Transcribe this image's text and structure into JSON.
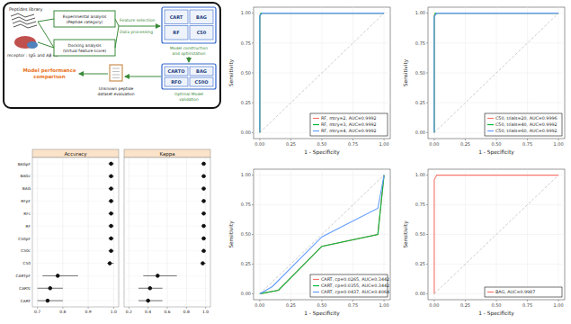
{
  "diagram": {
    "nodes": [
      {
        "label": [
          "Peptides library"
        ]
      },
      {
        "label": [
          "receptor : IgG and Aβ 42"
        ]
      },
      {
        "label": [
          "Experimental analysis",
          "(Peptide category)"
        ]
      },
      {
        "label": [
          "Docking analysis",
          "(Virtual feature score)"
        ]
      },
      {
        "label": [
          "Feature selection"
        ]
      },
      {
        "label": [
          "Data processing"
        ]
      },
      {
        "label": [
          "CART",
          "BAG",
          "RF",
          "C50"
        ]
      },
      {
        "label": [
          "Model construction",
          "and optimization"
        ]
      },
      {
        "label": [
          "CARTO",
          "BAG",
          "RFO",
          "C50O"
        ]
      },
      {
        "label": [
          "Optimal Model",
          "validation"
        ]
      },
      {
        "label": [
          "Unknown peptide",
          "dataset evaluation"
        ]
      },
      {
        "label": [
          "Model performance",
          "comparison"
        ]
      }
    ]
  },
  "chart_data": [
    {
      "type": "dot",
      "title": "Accuracy",
      "orientation": "horizontal",
      "grid": true,
      "categories": [
        "BAGpF",
        "BAGc",
        "BAG",
        "RFpF",
        "RFc",
        "RF",
        "C50pF",
        "C50c",
        "C50",
        "CARTpF",
        "CARTc",
        "CART"
      ],
      "values": [
        0.99,
        0.99,
        0.99,
        0.99,
        0.99,
        0.99,
        0.99,
        0.99,
        0.985,
        0.78,
        0.75,
        0.74
      ],
      "lower": [
        0.98,
        0.98,
        0.98,
        0.98,
        0.98,
        0.98,
        0.98,
        0.98,
        0.975,
        0.72,
        0.7,
        0.7
      ],
      "upper": [
        1,
        1,
        1,
        1,
        1,
        1,
        1,
        1,
        1,
        0.86,
        0.8,
        0.8
      ],
      "xlim": [
        0.68,
        1.02
      ],
      "xticks": [
        0.7,
        0.8,
        0.9,
        {
          "value": 1,
          "label": "1.0"
        }
      ]
    },
    {
      "type": "dot",
      "title": "Kappa",
      "orientation": "horizontal",
      "grid": true,
      "values": [
        0.98,
        0.98,
        0.98,
        0.98,
        0.98,
        0.98,
        0.98,
        0.98,
        0.97,
        0.5,
        0.42,
        0.4
      ],
      "lower": [
        0.96,
        0.96,
        0.96,
        0.96,
        0.96,
        0.96,
        0.96,
        0.96,
        0.95,
        0.35,
        0.3,
        0.3
      ],
      "upper": [
        1,
        1,
        1,
        1,
        1,
        1,
        1,
        1,
        1,
        0.7,
        0.55,
        0.55
      ],
      "xlim": [
        0.15,
        1.05
      ],
      "xticks": [
        0.2,
        0.4,
        0.6,
        0.8,
        {
          "value": 1,
          "label": "1.0"
        }
      ]
    },
    {
      "type": "line",
      "xlabel": "1 - Specificity",
      "ylabel": "Sensitivity",
      "grid": true,
      "legend": "bottom-right",
      "xlim": [
        -0.05,
        1.05
      ],
      "ylim": [
        -0.05,
        1.05
      ],
      "xticks": [
        {
          "value": 0,
          "label": "0.00"
        },
        {
          "value": 0.25,
          "label": "0.25"
        },
        {
          "value": 0.5,
          "label": "0.50"
        },
        {
          "value": 0.75,
          "label": "0.75"
        },
        {
          "value": 1,
          "label": "1.00"
        }
      ],
      "yticks": [
        {
          "value": 0,
          "label": "0.00"
        },
        {
          "value": 0.25,
          "label": "0.25"
        },
        {
          "value": 0.5,
          "label": "0.50"
        },
        {
          "value": 0.75,
          "label": "0.75"
        },
        {
          "value": 1,
          "label": "1.00"
        }
      ],
      "series": [
        {
          "name": "RF, mtry=2, AUC=0.9992",
          "color": "#F8766D",
          "x": [
            0,
            0,
            0.01,
            1
          ],
          "values": [
            0,
            0.98,
            1,
            1
          ]
        },
        {
          "name": "RF, mtry=3, AUC=0.9992",
          "color": "#00BA38",
          "x": [
            0,
            0,
            0.01,
            1
          ],
          "values": [
            0,
            0.97,
            1,
            1
          ]
        },
        {
          "name": "RF, mtry=4, AUC=0.9992",
          "color": "#619CFF",
          "x": [
            0,
            0,
            0.02,
            1
          ],
          "values": [
            0,
            0.98,
            1,
            1
          ]
        }
      ]
    },
    {
      "type": "line",
      "xlabel": "1 - Specificity",
      "ylabel": "Sensitivity",
      "grid": true,
      "legend": "bottom-right",
      "xlim": [
        -0.05,
        1.05
      ],
      "ylim": [
        -0.05,
        1.05
      ],
      "xticks": [
        {
          "value": 0,
          "label": "0.00"
        },
        {
          "value": 0.25,
          "label": "0.25"
        },
        {
          "value": 0.5,
          "label": "0.50"
        },
        {
          "value": 0.75,
          "label": "0.75"
        },
        {
          "value": 1,
          "label": "1.00"
        }
      ],
      "yticks": [
        {
          "value": 0,
          "label": "0.00"
        },
        {
          "value": 0.25,
          "label": "0.25"
        },
        {
          "value": 0.5,
          "label": "0.50"
        },
        {
          "value": 0.75,
          "label": "0.75"
        },
        {
          "value": 1,
          "label": "1.00"
        }
      ],
      "series": [
        {
          "name": "C50, trials=20, AUC=0.9996",
          "color": "#F8766D",
          "x": [
            0,
            0,
            0.01,
            1
          ],
          "values": [
            0,
            0.98,
            1,
            1
          ]
        },
        {
          "name": "C50, trials=40, AUC=0.9992",
          "color": "#00BA38",
          "x": [
            0,
            0,
            0.01,
            1
          ],
          "values": [
            0,
            0.97,
            1,
            1
          ]
        },
        {
          "name": "C50, trials=60, AUC=0.9992",
          "color": "#619CFF",
          "x": [
            0,
            0,
            0.02,
            1
          ],
          "values": [
            0,
            0.97,
            1,
            1
          ]
        }
      ]
    },
    {
      "type": "line",
      "xlabel": "1 - Specificity",
      "ylabel": "Sensitivity",
      "grid": true,
      "legend": "bottom-right",
      "xlim": [
        -0.05,
        1.05
      ],
      "ylim": [
        -0.05,
        1.05
      ],
      "xticks": [
        {
          "value": 0,
          "label": "0.00"
        },
        {
          "value": 0.25,
          "label": "0.25"
        },
        {
          "value": 0.5,
          "label": "0.50"
        },
        {
          "value": 0.75,
          "label": "0.75"
        },
        {
          "value": 1,
          "label": "1.00"
        }
      ],
      "yticks": [
        {
          "value": 0,
          "label": "0.00"
        },
        {
          "value": 0.25,
          "label": "0.25"
        },
        {
          "value": 0.5,
          "label": "0.50"
        },
        {
          "value": 0.75,
          "label": "0.75"
        },
        {
          "value": 1,
          "label": "1.00"
        }
      ],
      "series": [
        {
          "name": "CART, cp=0.0265, AUC=0.3442",
          "color": "#F8766D",
          "x": [
            0,
            0.15,
            0.5,
            0.95,
            1
          ],
          "values": [
            0,
            0.03,
            0.4,
            0.5,
            1
          ]
        },
        {
          "name": "CART, cp=0.0355, AUC=0.3442",
          "color": "#00BA38",
          "x": [
            0,
            0.15,
            0.5,
            0.95,
            1
          ],
          "values": [
            0,
            0.03,
            0.4,
            0.5,
            1
          ]
        },
        {
          "name": "CART, cp=0.0437, AUC=0.4064",
          "color": "#619CFF",
          "x": [
            0,
            0.1,
            0.5,
            0.95,
            1
          ],
          "values": [
            0,
            0.06,
            0.48,
            0.72,
            1
          ]
        }
      ]
    },
    {
      "type": "line",
      "xlabel": "1 - Specificity",
      "ylabel": "Sensitivity",
      "grid": true,
      "legend": "bottom-right",
      "xlim": [
        -0.05,
        1.05
      ],
      "ylim": [
        -0.05,
        1.05
      ],
      "xticks": [
        {
          "value": 0,
          "label": "0.00"
        },
        {
          "value": 0.25,
          "label": "0.25"
        },
        {
          "value": 0.5,
          "label": "0.50"
        },
        {
          "value": 0.75,
          "label": "0.75"
        },
        {
          "value": 1,
          "label": "1.00"
        }
      ],
      "yticks": [
        {
          "value": 0,
          "label": "0.00"
        },
        {
          "value": 0.25,
          "label": "0.25"
        },
        {
          "value": 0.5,
          "label": "0.50"
        },
        {
          "value": 0.75,
          "label": "0.75"
        },
        {
          "value": 1,
          "label": "1.00"
        }
      ],
      "series": [
        {
          "name": "BAG, AUC=0.9987",
          "color": "#F8766D",
          "x": [
            0,
            0,
            0.02,
            1
          ],
          "values": [
            0,
            0.96,
            1,
            1
          ]
        }
      ]
    }
  ]
}
